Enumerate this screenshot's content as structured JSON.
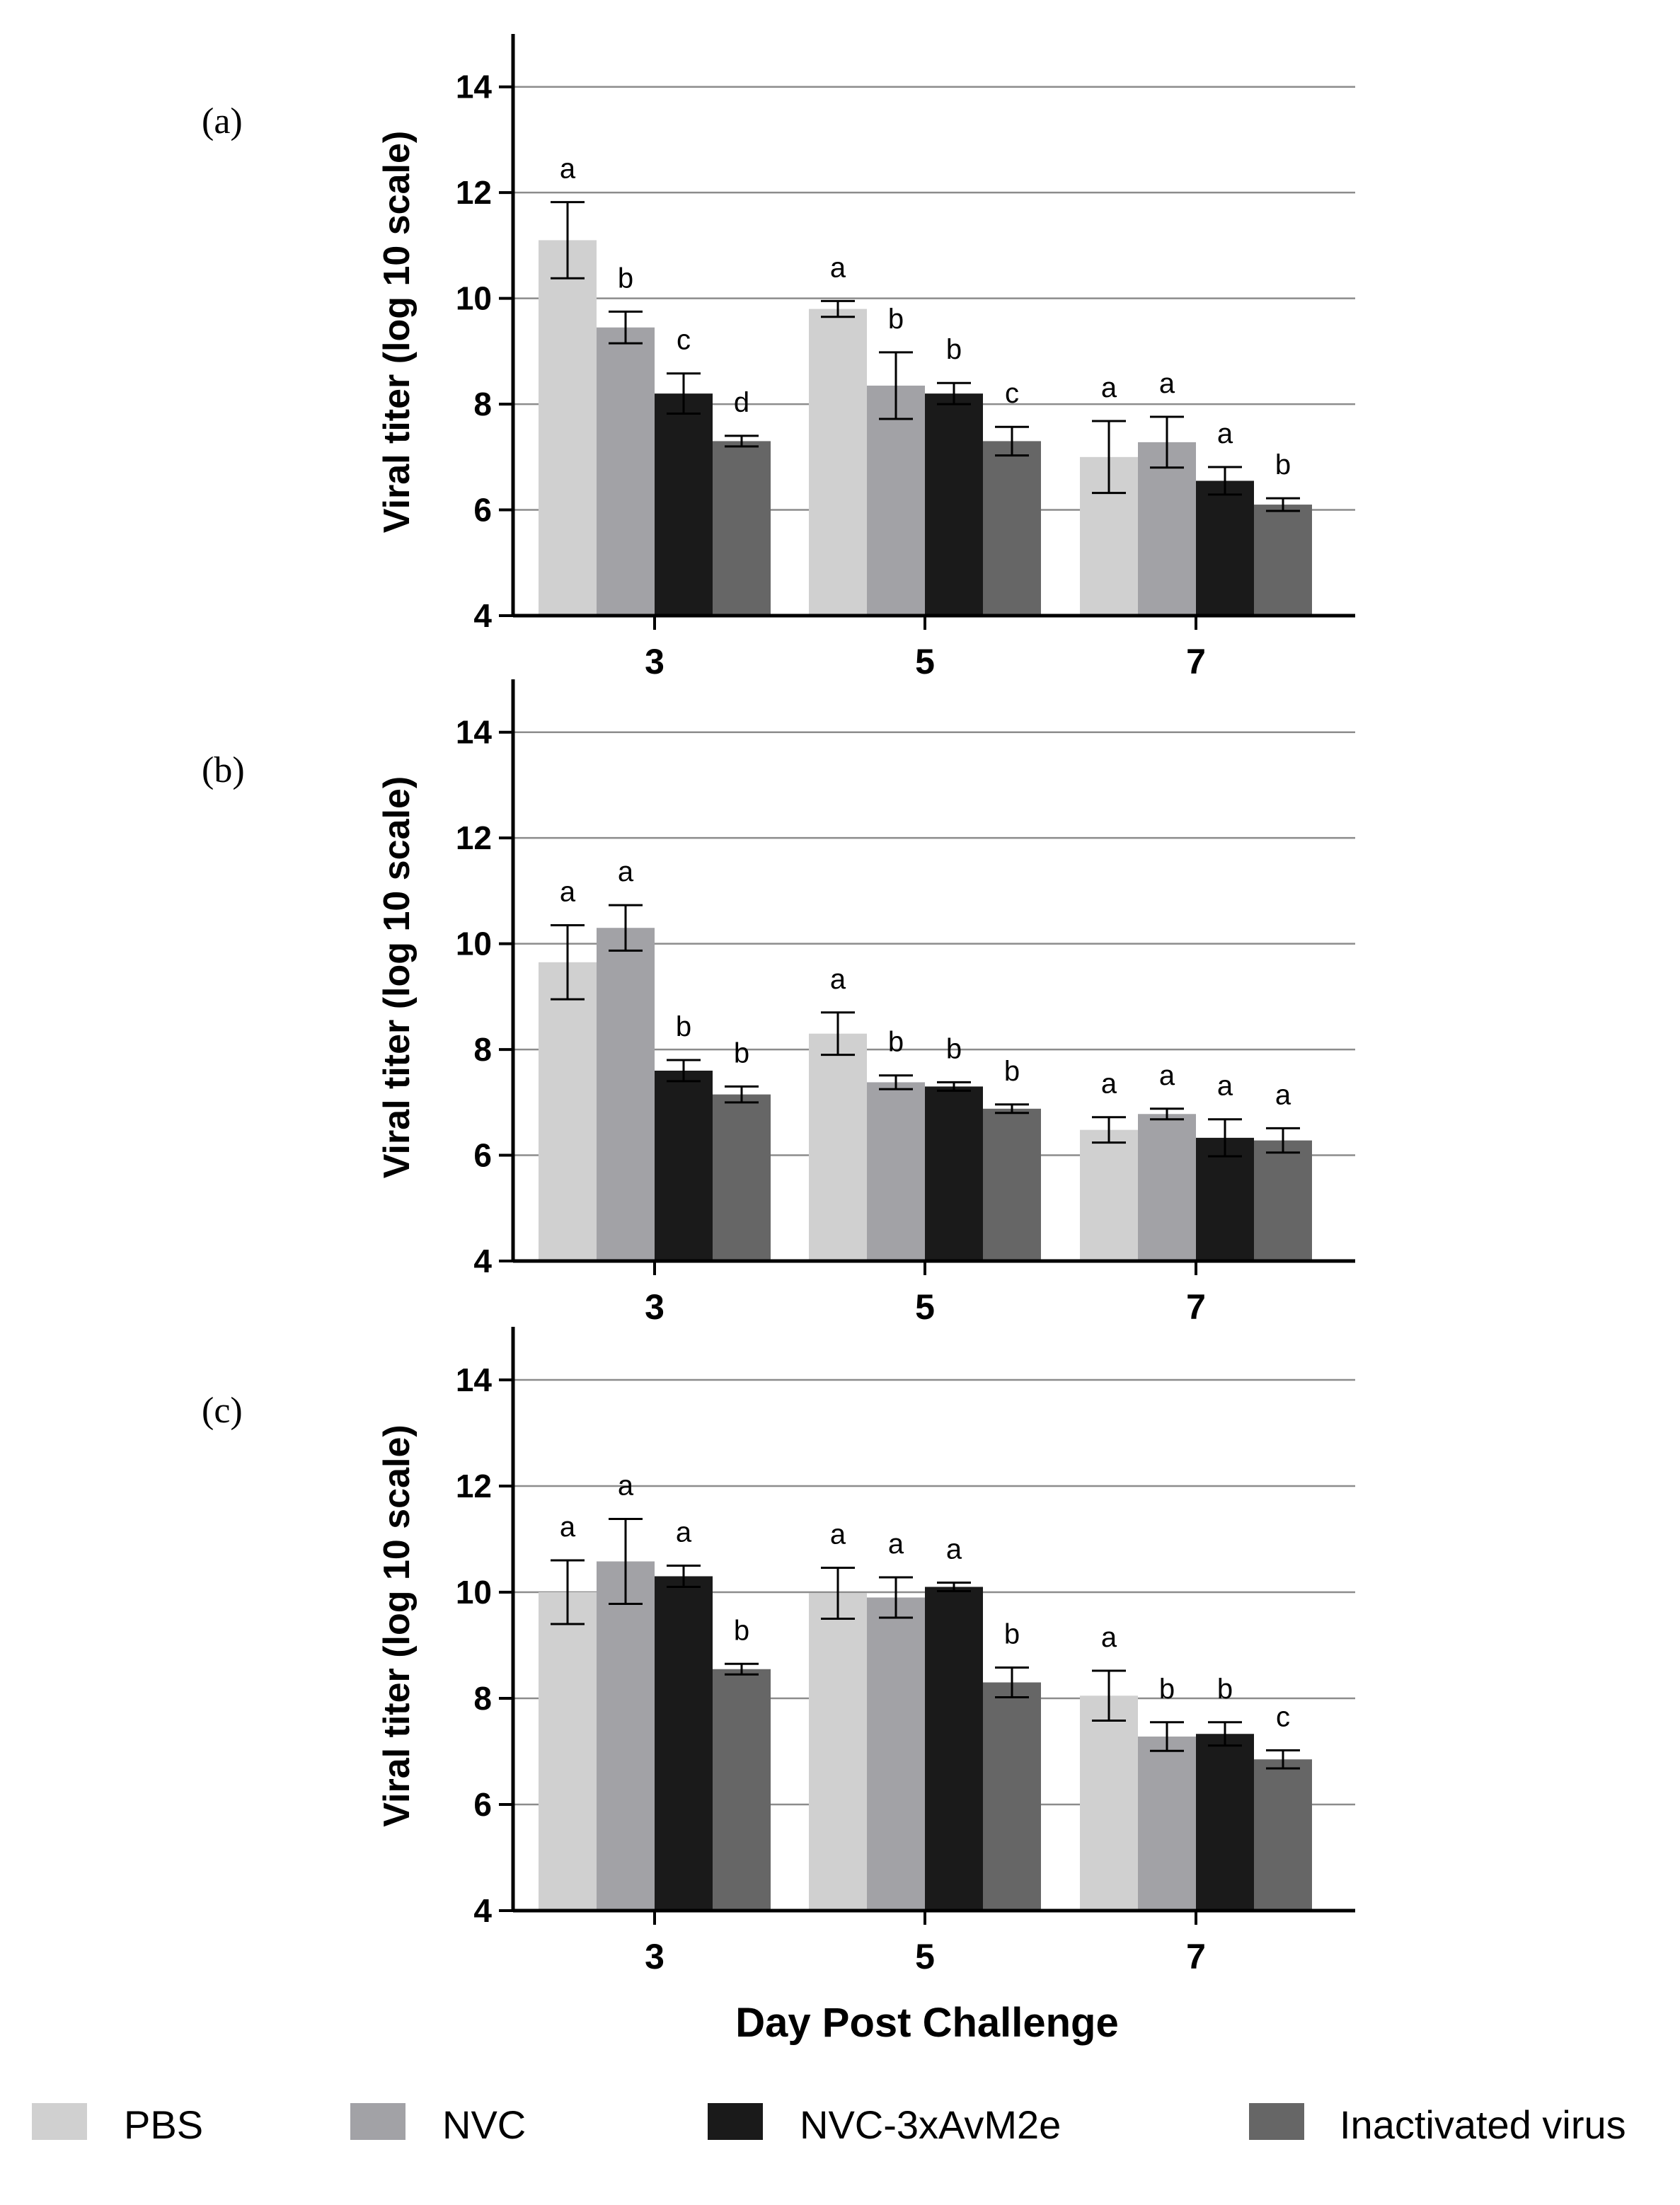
{
  "chart_data": [
    {
      "type": "bar",
      "panel_label": "(a)",
      "categories": [
        "3",
        "5",
        "7"
      ],
      "ylabel": "Viral titer (log 10 scale)",
      "xlabel": "",
      "ylim": [
        4,
        15
      ],
      "yticks": [
        "4",
        "6",
        "8",
        "10",
        "12",
        "14"
      ],
      "grid": true,
      "series": [
        {
          "name": "PBS",
          "values": [
            11.1,
            9.8,
            7.0
          ],
          "errors": [
            0.72,
            0.15,
            0.68
          ],
          "letters": [
            "a",
            "a",
            "a"
          ]
        },
        {
          "name": "NVC",
          "values": [
            9.45,
            8.35,
            7.28
          ],
          "errors": [
            0.3,
            0.63,
            0.48
          ],
          "letters": [
            "b",
            "b",
            "a"
          ]
        },
        {
          "name": "NVC-3xAvM2e",
          "values": [
            8.2,
            8.2,
            6.55
          ],
          "errors": [
            0.38,
            0.2,
            0.26
          ],
          "letters": [
            "c",
            "b",
            "a"
          ]
        },
        {
          "name": "Inactivated virus",
          "values": [
            7.3,
            7.3,
            6.1
          ],
          "errors": [
            0.1,
            0.27,
            0.12
          ],
          "letters": [
            "d",
            "c",
            "b"
          ]
        }
      ]
    },
    {
      "type": "bar",
      "panel_label": "(b)",
      "categories": [
        "3",
        "5",
        "7"
      ],
      "ylabel": "Viral titer (log 10 scale)",
      "xlabel": "",
      "ylim": [
        4,
        15
      ],
      "yticks": [
        "4",
        "6",
        "8",
        "10",
        "12",
        "14"
      ],
      "grid": true,
      "series": [
        {
          "name": "PBS",
          "values": [
            9.65,
            8.3,
            6.48
          ],
          "errors": [
            0.7,
            0.4,
            0.24
          ],
          "letters": [
            "a",
            "a",
            "a"
          ]
        },
        {
          "name": "NVC",
          "values": [
            10.3,
            7.38,
            6.78
          ],
          "errors": [
            0.43,
            0.13,
            0.1
          ],
          "letters": [
            "a",
            "b",
            "a"
          ]
        },
        {
          "name": "NVC-3xAvM2e",
          "values": [
            7.6,
            7.3,
            6.33
          ],
          "errors": [
            0.2,
            0.08,
            0.35
          ],
          "letters": [
            "b",
            "b",
            "a"
          ]
        },
        {
          "name": "Inactivated virus",
          "values": [
            7.15,
            6.88,
            6.28
          ],
          "errors": [
            0.15,
            0.08,
            0.23
          ],
          "letters": [
            "b",
            "b",
            "a"
          ]
        }
      ]
    },
    {
      "type": "bar",
      "panel_label": "(c)",
      "categories": [
        "3",
        "5",
        "7"
      ],
      "ylabel": "Viral titer (log 10 scale)",
      "xlabel": "Day Post Challenge",
      "ylim": [
        4,
        15
      ],
      "yticks": [
        "4",
        "6",
        "8",
        "10",
        "12",
        "14"
      ],
      "grid": true,
      "series": [
        {
          "name": "PBS",
          "values": [
            10.0,
            9.98,
            8.05
          ],
          "errors": [
            0.6,
            0.48,
            0.47
          ],
          "letters": [
            "a",
            "a",
            "a"
          ]
        },
        {
          "name": "NVC",
          "values": [
            10.58,
            9.9,
            7.28
          ],
          "errors": [
            0.8,
            0.38,
            0.27
          ],
          "letters": [
            "a",
            "a",
            "b"
          ]
        },
        {
          "name": "NVC-3xAvM2e",
          "values": [
            10.3,
            10.1,
            7.33
          ],
          "errors": [
            0.2,
            0.08,
            0.22
          ],
          "letters": [
            "a",
            "a",
            "b"
          ]
        },
        {
          "name": "Inactivated virus",
          "values": [
            8.55,
            8.3,
            6.85
          ],
          "errors": [
            0.1,
            0.28,
            0.17
          ],
          "letters": [
            "b",
            "b",
            "c"
          ]
        }
      ]
    }
  ],
  "legend": {
    "items": [
      {
        "name": "PBS",
        "color": "#d0d0d0"
      },
      {
        "name": "NVC",
        "color": "#a2a2a6"
      },
      {
        "name": "NVC-3xAvM2e",
        "color": "#1a1a1a"
      },
      {
        "name": "Inactivated virus",
        "color": "#666666"
      }
    ]
  }
}
